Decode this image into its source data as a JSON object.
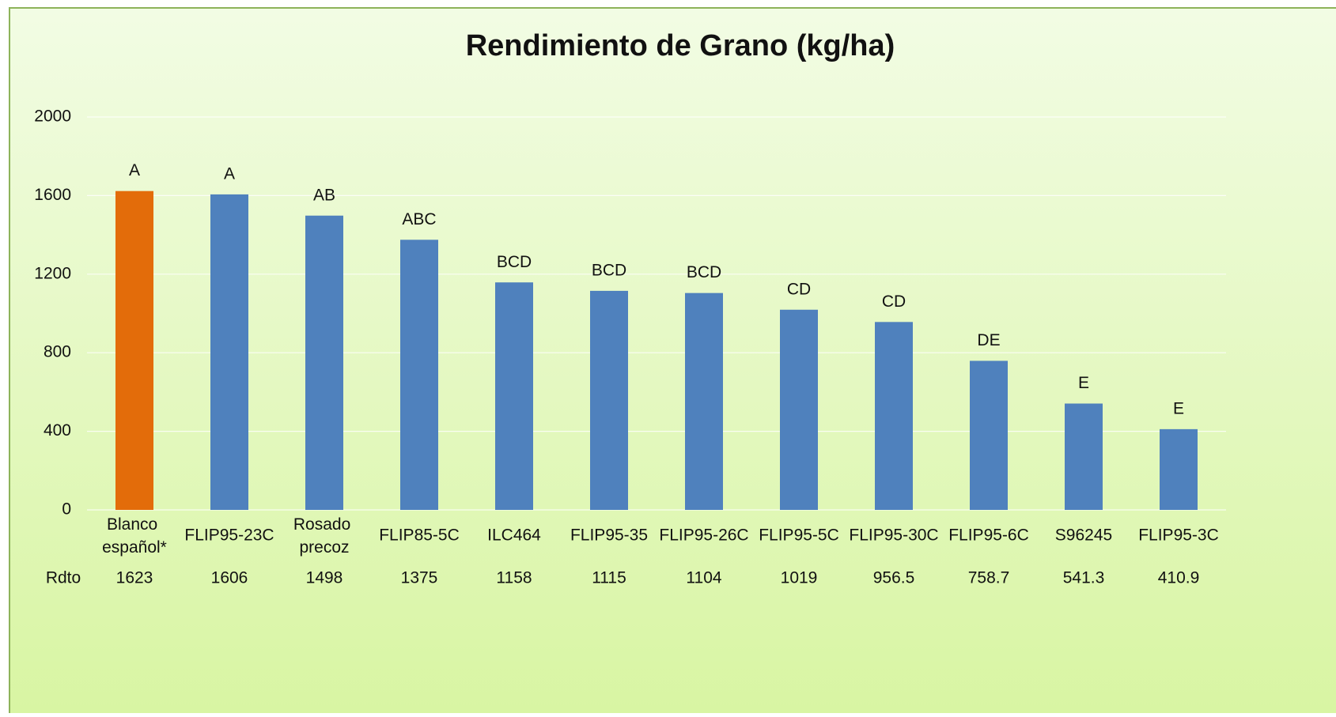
{
  "chart_data": {
    "type": "bar",
    "title": "Rendimiento de Grano (kg/ha)",
    "categories": [
      "Blanco español*",
      "FLIP95-23C",
      "Rosado precoz",
      "FLIP85-5C",
      "ILC464",
      "FLIP95-35",
      "FLIP95-26C",
      "FLIP95-5C",
      "FLIP95-30C",
      "FLIP95-6C",
      "S96245",
      "FLIP95-3C"
    ],
    "series": [
      {
        "name": "Rdto",
        "colors": [
          "#e36c0a",
          "#4f81bd",
          "#4f81bd",
          "#4f81bd",
          "#4f81bd",
          "#4f81bd",
          "#4f81bd",
          "#4f81bd",
          "#4f81bd",
          "#4f81bd",
          "#4f81bd",
          "#4f81bd"
        ],
        "values": [
          1623,
          1606,
          1498,
          1375,
          1158,
          1115,
          1104,
          1019,
          956.5,
          758.7,
          541.3,
          410.9
        ]
      }
    ],
    "annotations": [
      "A",
      "A",
      "AB",
      "ABC",
      "BCD",
      "BCD",
      "BCD",
      "CD",
      "CD",
      "DE",
      "E",
      "E"
    ],
    "ylim": [
      0,
      2000
    ],
    "yticks": [
      0,
      400,
      800,
      1200,
      1600,
      2000
    ],
    "grid": true,
    "data_table": true
  }
}
